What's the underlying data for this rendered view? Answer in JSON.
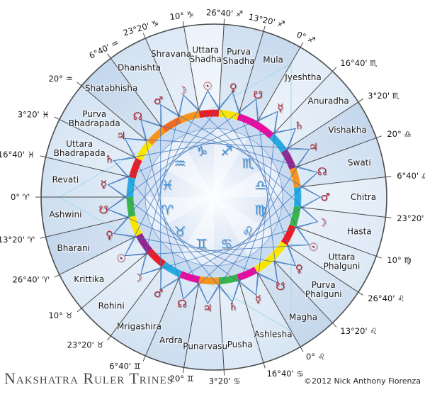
{
  "title": "Nakshatra Ruler Trines",
  "copyright": "©2012 Nick Anthony Fiorenza",
  "chart_data": {
    "type": "radial-wheel",
    "title": "Nakshatra Ruler Trines",
    "orientation": "0° Aries at left, longitude increases counterclockwise, 27 sectors of 13°20'",
    "signs": [
      {
        "name": "aries",
        "glyph": "♈"
      },
      {
        "name": "taurus",
        "glyph": "♉"
      },
      {
        "name": "gemini",
        "glyph": "♊"
      },
      {
        "name": "cancer",
        "glyph": "♋"
      },
      {
        "name": "leo",
        "glyph": "♌"
      },
      {
        "name": "virgo",
        "glyph": "♍"
      },
      {
        "name": "libra",
        "glyph": "♎"
      },
      {
        "name": "scorpio",
        "glyph": "♏"
      },
      {
        "name": "sagittarius",
        "glyph": "♐"
      },
      {
        "name": "capricorn",
        "glyph": "♑"
      },
      {
        "name": "aquarius",
        "glyph": "♒"
      },
      {
        "name": "pisces",
        "glyph": "♓"
      }
    ],
    "nakshatras": [
      {
        "name": "Ashwini",
        "ruler": "ketu",
        "ruler_glyph": "☋",
        "start_label": "0° ♈",
        "ring_color": "#3ab54a",
        "sector_color": "#cddeef"
      },
      {
        "name": "Bharani",
        "ruler": "venus",
        "ruler_glyph": "♀",
        "start_label": "13°20' ♈",
        "ring_color": "#f9e500",
        "sector_color": "#c4d7ec"
      },
      {
        "name": "Krittika",
        "ruler": "sun",
        "ruler_glyph": "☉",
        "start_label": "26°40' ♈",
        "ring_color": "#93278f",
        "sector_color": "#dde9f6"
      },
      {
        "name": "Rohini",
        "ruler": "moon",
        "ruler_glyph": "☽",
        "start_label": "10° ♉",
        "ring_color": "#ec1c24",
        "sector_color": "#dde9f6"
      },
      {
        "name": "Mrigashira",
        "ruler": "mars",
        "ruler_glyph": "♂",
        "start_label": "23°20' ♉",
        "ring_color": "#29abe2",
        "sector_color": "#d3e2f2"
      },
      {
        "name": "Ardra",
        "ruler": "rahu",
        "ruler_glyph": "☊",
        "start_label": "6°40' ♊",
        "ring_color": "#ec0a9e",
        "sector_color": "#ccddef"
      },
      {
        "name": "Punarvasu",
        "ruler": "jupiter",
        "ruler_glyph": "♃",
        "start_label": "20° ♊",
        "ring_color": "#f7941e",
        "sector_color": "#d5e3f3"
      },
      {
        "name": "Pusha",
        "ruler": "saturn",
        "ruler_glyph": "♄",
        "start_label": "3°20' ♋",
        "ring_color": "#3ab54a",
        "sector_color": "#dde9f6"
      },
      {
        "name": "Ashlesha",
        "ruler": "mercury",
        "ruler_glyph": "☿",
        "start_label": "16°40' ♋",
        "ring_color": "#ec0a9e",
        "sector_color": "#d8e6f4"
      },
      {
        "name": "Magha",
        "ruler": "ketu",
        "ruler_glyph": "☋",
        "start_label": "0° ♌",
        "ring_color": "#f9e500",
        "sector_color": "#c4d7ec"
      },
      {
        "name": "Purva Phalguni",
        "ruler": "venus",
        "ruler_glyph": "♀",
        "start_label": "13°20' ♌",
        "ring_color": "#f9e500",
        "sector_color": "#d0e0f1"
      },
      {
        "name": "Uttara Phalguni",
        "ruler": "sun",
        "ruler_glyph": "☉",
        "start_label": "26°40' ♌",
        "ring_color": "#ec1c24",
        "sector_color": "#dde9f6"
      },
      {
        "name": "Hasta",
        "ruler": "moon",
        "ruler_glyph": "☽",
        "start_label": "10° ♍",
        "ring_color": "#3ab54a",
        "sector_color": "#dfeaf7"
      },
      {
        "name": "Chitra",
        "ruler": "mars",
        "ruler_glyph": "♂",
        "start_label": "23°20' ♍",
        "ring_color": "#29abe2",
        "sector_color": "#e3edf8"
      },
      {
        "name": "Swati",
        "ruler": "rahu",
        "ruler_glyph": "☊",
        "start_label": "6°40' ♎",
        "ring_color": "#f7941e",
        "sector_color": "#d0e0f1"
      },
      {
        "name": "Vishakha",
        "ruler": "jupiter",
        "ruler_glyph": "♃",
        "start_label": "20° ♎",
        "ring_color": "#93278f",
        "sector_color": "#c4d7ec"
      },
      {
        "name": "Anuradha",
        "ruler": "saturn",
        "ruler_glyph": "♄",
        "start_label": "3°20' ♏",
        "ring_color": "#29abe2",
        "sector_color": "#dde9f6"
      },
      {
        "name": "Jyeshtha",
        "ruler": "mercury",
        "ruler_glyph": "☿",
        "start_label": "16°40' ♏",
        "ring_color": "#ec0a9e",
        "sector_color": "#e3edf8"
      },
      {
        "name": "Mula",
        "ruler": "ketu",
        "ruler_glyph": "☋",
        "start_label": "0° ♐",
        "ring_color": "#ec0a9e",
        "sector_color": "#c8daee"
      },
      {
        "name": "Purva Shadha",
        "ruler": "venus",
        "ruler_glyph": "♀",
        "start_label": "13°20' ♐",
        "ring_color": "#f9e500",
        "sector_color": "#d0e0f1"
      },
      {
        "name": "Uttara Shadha",
        "ruler": "sun",
        "ruler_glyph": "☉",
        "start_label": "26°40' ♐",
        "ring_color": "#ec1c24",
        "sector_color": "#ecf3fb"
      },
      {
        "name": "Shravana",
        "ruler": "moon",
        "ruler_glyph": "☽",
        "start_label": "10° ♑",
        "ring_color": "#f7941e",
        "sector_color": "#dde9f6"
      },
      {
        "name": "Dhanishta",
        "ruler": "mars",
        "ruler_glyph": "♂",
        "start_label": "23°20' ♑",
        "ring_color": "#f26a21",
        "sector_color": "#d3e2f2"
      },
      {
        "name": "Shatabhisha",
        "ruler": "rahu",
        "ruler_glyph": "☊",
        "start_label": "6°40' ♒",
        "ring_color": "#f7941e",
        "sector_color": "#c4d7ec"
      },
      {
        "name": "Purva Bhadrapada",
        "ruler": "jupiter",
        "ruler_glyph": "♃",
        "start_label": "20° ♒",
        "ring_color": "#f9e500",
        "sector_color": "#d4e3f3"
      },
      {
        "name": "Uttara Bhadrapada",
        "ruler": "saturn",
        "ruler_glyph": "♄",
        "start_label": "3°20' ♓",
        "ring_color": "#ec1c24",
        "sector_color": "#d8e6f4"
      },
      {
        "name": "Revati",
        "ruler": "mercury",
        "ruler_glyph": "☿",
        "start_label": "16°40' ♓",
        "ring_color": "#29abe2",
        "sector_color": "#d3e2f2"
      }
    ],
    "highlight_trine": {
      "longitudes": [
        0,
        120,
        240
      ],
      "color": "#aadcf2"
    },
    "colors": {
      "ruler_glyph": "#ab2430",
      "sign_glyph": "#3f90d8",
      "web_line": "#3a70b8",
      "boundary_line": "#4a4a4a",
      "rim": "#4d4d4d",
      "inner_circle_stroke": "#84a9d8",
      "inner_band": "#c9dbf0",
      "pinwheel_light": "#e8eff9",
      "pinwheel_dark": "#d5e2f3",
      "label": "#1b1b1b"
    }
  }
}
